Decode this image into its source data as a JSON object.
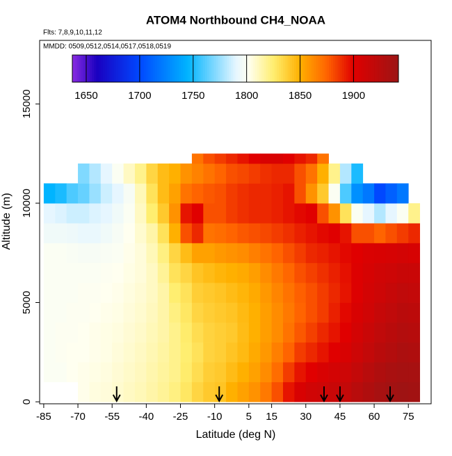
{
  "chart_data": {
    "type": "heatmap",
    "title": "ATOM4 Northbound CH4_NOAA",
    "subtitle": "Flts: 7,8,9,10,11,12",
    "annotation": "MMDD: 0509,0512,0514,0517,0518,0519",
    "x_label": "Latitude (deg N)",
    "y_label": "Altitude (m)",
    "xlim": [
      -86.8,
      85
    ],
    "ylim": [
      -100,
      18200
    ],
    "xticks": [
      -85,
      -70,
      -55,
      -40,
      -25,
      -10,
      5,
      15,
      30,
      45,
      60,
      75
    ],
    "yticks": [
      0,
      5000,
      10000,
      15000
    ],
    "clim": [
      1637,
      1942
    ],
    "cticks": [
      1650,
      1700,
      1750,
      1800,
      1850,
      1900
    ],
    "colorscale": [
      [
        1637,
        "#8a2be2"
      ],
      [
        1660,
        "#1a00c0"
      ],
      [
        1700,
        "#0048ff"
      ],
      [
        1745,
        "#00b4ff"
      ],
      [
        1790,
        "#e6f6ff"
      ],
      [
        1802,
        "#fffff0"
      ],
      [
        1825,
        "#ffee70"
      ],
      [
        1850,
        "#ffb000"
      ],
      [
        1875,
        "#ff6400"
      ],
      [
        1900,
        "#e00000"
      ],
      [
        1942,
        "#9c1414"
      ]
    ],
    "arrows_x": [
      -53,
      -8,
      38,
      45,
      67
    ],
    "x_edges": [
      -85,
      -80,
      -75,
      -70,
      -65,
      -60,
      -55,
      -50,
      -45,
      -40,
      -35,
      -30,
      -25,
      -20,
      -15,
      -10,
      -5,
      0,
      5,
      10,
      15,
      20,
      25,
      30,
      35,
      40,
      45,
      50,
      55,
      60,
      65,
      70,
      75,
      80
    ],
    "y_edges": [
      0,
      1000,
      2000,
      3000,
      4000,
      5000,
      6000,
      7000,
      8000,
      9000,
      10000,
      11000,
      12000,
      12500
    ],
    "z": [
      [
        null,
        1800,
        1800,
        1800,
        1800,
        1800,
        1800,
        1800,
        1795,
        1790,
        1745,
        null,
        null
      ],
      [
        null,
        1800,
        1801,
        1801,
        1800,
        1800,
        1800,
        1800,
        1795,
        1788,
        1750,
        null,
        null
      ],
      [
        null,
        1802,
        1802,
        1801,
        1801,
        1800,
        1800,
        1799,
        1794,
        1785,
        1760,
        null,
        null
      ],
      [
        1803,
        1803,
        1802,
        1802,
        1801,
        1801,
        1800,
        1798,
        1792,
        1785,
        1765,
        1770,
        null
      ],
      [
        1805,
        1804,
        1803,
        1803,
        1802,
        1801,
        1800,
        1798,
        1792,
        1788,
        1775,
        1780,
        null
      ],
      [
        1806,
        1805,
        1804,
        1804,
        1803,
        1802,
        1801,
        1799,
        1795,
        1790,
        1785,
        1790,
        null
      ],
      [
        1808,
        1807,
        1806,
        1805,
        1804,
        1803,
        1802,
        1800,
        1798,
        1795,
        1790,
        1800,
        null
      ],
      [
        1810,
        1809,
        1808,
        1807,
        1806,
        1805,
        1804,
        1803,
        1802,
        1800,
        1798,
        1810,
        null
      ],
      [
        1812,
        1811,
        1810,
        1809,
        1808,
        1807,
        1806,
        1806,
        1808,
        1810,
        1812,
        1820,
        null
      ],
      [
        1815,
        1814,
        1813,
        1812,
        1811,
        1810,
        1810,
        1812,
        1815,
        1825,
        1830,
        1835,
        null
      ],
      [
        1818,
        1817,
        1816,
        1815,
        1815,
        1815,
        1818,
        1822,
        1830,
        1840,
        1845,
        1845,
        null
      ],
      [
        1822,
        1820,
        1820,
        1820,
        1822,
        1825,
        1830,
        1835,
        1850,
        1860,
        1855,
        1850,
        null
      ],
      [
        1828,
        1826,
        1825,
        1826,
        1828,
        1830,
        1835,
        1845,
        1880,
        1895,
        1870,
        1860,
        null
      ],
      [
        1835,
        1832,
        1830,
        1832,
        1835,
        1838,
        1842,
        1855,
        1890,
        1900,
        1875,
        1865,
        1870
      ],
      [
        1840,
        1838,
        1836,
        1836,
        1838,
        1840,
        1845,
        1855,
        1870,
        1880,
        1878,
        1870,
        1880
      ],
      [
        1842,
        1840,
        1838,
        1838,
        1840,
        1842,
        1848,
        1858,
        1872,
        1880,
        1880,
        1875,
        1885
      ],
      [
        1850,
        1845,
        1842,
        1840,
        1842,
        1845,
        1850,
        1860,
        1875,
        1885,
        1885,
        1880,
        1890
      ],
      [
        1855,
        1850,
        1846,
        1845,
        1846,
        1848,
        1852,
        1862,
        1878,
        1888,
        1888,
        1882,
        1895
      ],
      [
        1860,
        1855,
        1852,
        1850,
        1850,
        1852,
        1856,
        1866,
        1880,
        1890,
        1890,
        1885,
        1900
      ],
      [
        1868,
        1862,
        1858,
        1856,
        1856,
        1858,
        1862,
        1870,
        1882,
        1890,
        1890,
        1888,
        1905
      ],
      [
        1880,
        1872,
        1866,
        1862,
        1862,
        1864,
        1868,
        1875,
        1885,
        1892,
        1892,
        1890,
        1905
      ],
      [
        1895,
        1885,
        1875,
        1870,
        1868,
        1870,
        1874,
        1880,
        1888,
        1895,
        1895,
        1890,
        1900
      ],
      [
        1905,
        1895,
        1885,
        1878,
        1875,
        1876,
        1880,
        1885,
        1892,
        1898,
        1880,
        1880,
        1895
      ],
      [
        1910,
        1900,
        1890,
        1884,
        1880,
        1880,
        1884,
        1890,
        1895,
        1900,
        1860,
        1870,
        1890
      ],
      [
        1912,
        1905,
        1895,
        1890,
        1885,
        1885,
        1888,
        1892,
        1898,
        1880,
        1840,
        1850,
        1870
      ],
      [
        1915,
        1908,
        1900,
        1895,
        1892,
        1890,
        1892,
        1895,
        1900,
        1860,
        1800,
        1820,
        null
      ],
      [
        1918,
        1912,
        1905,
        1900,
        1898,
        1895,
        1896,
        1898,
        1895,
        1830,
        1760,
        1780,
        null
      ],
      [
        1925,
        1918,
        1912,
        1908,
        1905,
        1902,
        1902,
        1900,
        1880,
        1800,
        1730,
        1750,
        null
      ],
      [
        1930,
        1925,
        1918,
        1914,
        1910,
        1908,
        1906,
        1904,
        1880,
        1790,
        1720,
        null,
        null
      ],
      [
        1935,
        1930,
        1924,
        1920,
        1916,
        1912,
        1910,
        1905,
        1875,
        1780,
        1700,
        null,
        null
      ],
      [
        1938,
        1934,
        1928,
        1924,
        1920,
        1916,
        1912,
        1906,
        1880,
        1790,
        1710,
        null,
        null
      ],
      [
        1940,
        1936,
        1932,
        1928,
        1924,
        1920,
        1915,
        1908,
        1885,
        1800,
        1720,
        null,
        null
      ],
      [
        1938,
        1935,
        1930,
        1926,
        1922,
        1918,
        1914,
        1906,
        1890,
        1820,
        null,
        null,
        null
      ]
    ]
  }
}
